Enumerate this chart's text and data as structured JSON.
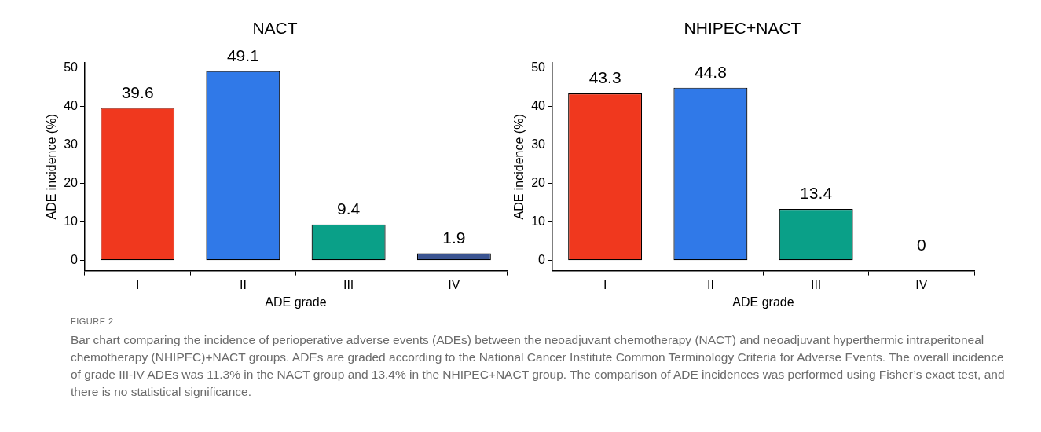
{
  "chart_data": [
    {
      "type": "bar",
      "title": "NACT",
      "xlabel": "ADE grade",
      "ylabel": "ADE incidence (%)",
      "categories": [
        "I",
        "II",
        "III",
        "IV"
      ],
      "values": [
        39.6,
        49.1,
        9.4,
        1.9
      ],
      "colors": [
        "#f0381e",
        "#3079e8",
        "#0aa088",
        "#3b5491"
      ],
      "ylim": [
        -2.6,
        51.2
      ],
      "yticks": [
        0,
        10,
        20,
        30,
        40,
        50
      ],
      "grid": false,
      "legend": false,
      "data_labels": true,
      "annotations": [
        "FIGURE 2",
        "Bar chart comparing the incidence of perioperative adverse events (ADEs) between the neoadjuvant chemotherapy (NACT) and neoadjuvant hyperthermic intraperitoneal chemotherapy (NHIPEC)+NACT groups. ADEs are graded according to the National Cancer Institute Common Terminology Criteria for Adverse Events. The overall incidence of grade III-IV ADEs was 11.3% in the NACT group and 13.4% in the NHIPEC+NACT group. The comparison of ADE incidences was performed using Fisher’s exact test, and there is no statistical significance."
      ]
    },
    {
      "type": "bar",
      "title": "NHIPEC+NACT",
      "xlabel": "ADE grade",
      "ylabel": "ADE incidence (%)",
      "categories": [
        "I",
        "II",
        "III",
        "IV"
      ],
      "values": [
        43.3,
        44.8,
        13.4,
        0
      ],
      "colors": [
        "#f0381e",
        "#3079e8",
        "#0aa088",
        "#3b5491"
      ],
      "ylim": [
        -2.6,
        51.2
      ],
      "yticks": [
        0,
        10,
        20,
        30,
        40,
        50
      ],
      "grid": false,
      "legend": false,
      "data_labels": true
    }
  ]
}
